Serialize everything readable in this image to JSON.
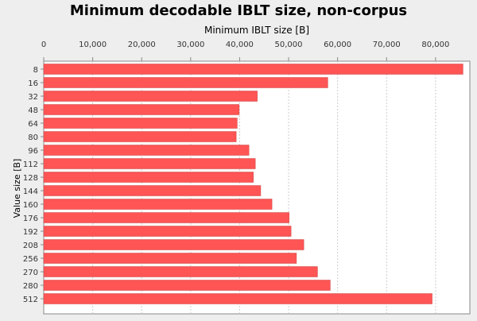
{
  "chart_data": {
    "type": "bar",
    "orientation": "horizontal",
    "title": "Minimum decodable IBLT size, non-corpus",
    "xlabel": "Minimum IBLT size [B]",
    "ylabel": "Value size [B]",
    "xaxis_position": "top",
    "xlim": [
      0,
      87000
    ],
    "xticks": [
      0,
      10000,
      20000,
      30000,
      40000,
      50000,
      60000,
      70000,
      80000
    ],
    "xtick_labels": [
      "0",
      "10,000",
      "20,000",
      "30,000",
      "40,000",
      "50,000",
      "60,000",
      "70,000",
      "80,000"
    ],
    "grid": true,
    "categories": [
      "8",
      "16",
      "32",
      "48",
      "64",
      "80",
      "96",
      "112",
      "128",
      "144",
      "160",
      "176",
      "192",
      "208",
      "256",
      "270",
      "280",
      "512"
    ],
    "values": [
      85600,
      58000,
      43600,
      39900,
      39500,
      39300,
      41900,
      43200,
      42800,
      44300,
      46600,
      50100,
      50500,
      53100,
      51600,
      55900,
      58500,
      79300
    ],
    "bar_color": "#ff5555"
  }
}
